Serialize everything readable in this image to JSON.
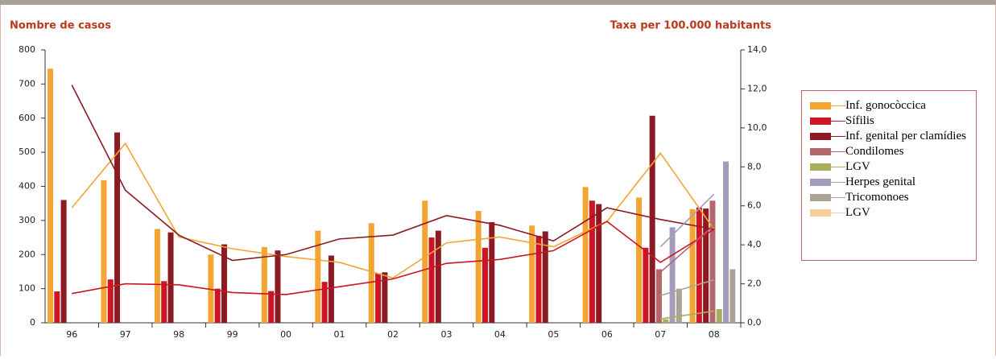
{
  "chart_data": {
    "type": "bar",
    "y_title": "Nombre de casos",
    "y2_title": "Taxa per 100.000 habitants",
    "categories": [
      "96",
      "97",
      "98",
      "99",
      "00",
      "01",
      "02",
      "03",
      "04",
      "05",
      "06",
      "07",
      "08"
    ],
    "ylim": [
      0,
      800
    ],
    "yticks": [
      0,
      100,
      200,
      300,
      400,
      500,
      600,
      700,
      800
    ],
    "y2lim": [
      0,
      14
    ],
    "y2ticks": [
      {
        "value": 0,
        "label": "0,0"
      },
      {
        "value": 2,
        "label": "2,0"
      },
      {
        "value": 4,
        "label": "4,0"
      },
      {
        "value": 6,
        "label": "6,0"
      },
      {
        "value": 8,
        "label": "8,0"
      },
      {
        "value": 10,
        "label": "10,0"
      },
      {
        "value": 12,
        "label": "12,0"
      },
      {
        "value": 14,
        "label": "14,0"
      }
    ],
    "series": [
      {
        "name": "Inf. gonocòccica",
        "color": "#f2a533",
        "values": [
          745,
          418,
          275,
          200,
          222,
          270,
          292,
          358,
          328,
          285,
          398,
          367,
          333
        ],
        "rates": [
          5.9,
          9.2,
          4.4,
          3.8,
          3.4,
          3.1,
          2.3,
          4.1,
          4.4,
          3.9,
          5.2,
          8.7,
          4.8
        ]
      },
      {
        "name": "Sífilis",
        "color": "#cc1424",
        "values": [
          92,
          127,
          122,
          100,
          93,
          120,
          145,
          250,
          220,
          255,
          358,
          220,
          338
        ],
        "rates": [
          1.5,
          2.0,
          1.95,
          1.55,
          1.45,
          1.85,
          2.25,
          3.05,
          3.25,
          3.7,
          5.2,
          3.1,
          4.8
        ]
      },
      {
        "name": "Inf. genital per clamídies",
        "color": "#8c1a22",
        "values": [
          360,
          558,
          265,
          230,
          212,
          197,
          148,
          270,
          295,
          268,
          348,
          607,
          335
        ],
        "rates": [
          12.2,
          6.8,
          4.5,
          3.2,
          3.5,
          4.3,
          4.5,
          5.5,
          5.0,
          4.2,
          5.9,
          5.3,
          4.8
        ]
      },
      {
        "name": "Condilomes",
        "color": "#b5666a",
        "values": [
          null,
          null,
          null,
          null,
          null,
          null,
          null,
          null,
          null,
          null,
          null,
          157,
          358
        ],
        "rates": [
          null,
          null,
          null,
          null,
          null,
          null,
          null,
          null,
          null,
          null,
          null,
          2.6,
          5.0
        ]
      },
      {
        "name": "LGV",
        "color": "#a9ae5a",
        "values": [
          null,
          null,
          null,
          null,
          null,
          null,
          null,
          null,
          null,
          null,
          null,
          10,
          40
        ],
        "rates": [
          null,
          null,
          null,
          null,
          null,
          null,
          null,
          null,
          null,
          null,
          null,
          0.2,
          0.6
        ]
      },
      {
        "name": "Herpes genital",
        "color": "#a49bbd",
        "values": [
          null,
          null,
          null,
          null,
          null,
          null,
          null,
          null,
          null,
          null,
          null,
          280,
          473
        ],
        "rates": [
          null,
          null,
          null,
          null,
          null,
          null,
          null,
          null,
          null,
          null,
          null,
          3.9,
          6.6
        ]
      },
      {
        "name": "Tricomonoes",
        "color": "#aaa396",
        "values": [
          null,
          null,
          null,
          null,
          null,
          null,
          null,
          null,
          null,
          null,
          null,
          100,
          157
        ],
        "rates": [
          null,
          null,
          null,
          null,
          null,
          null,
          null,
          null,
          null,
          null,
          null,
          1.4,
          2.2
        ]
      },
      {
        "name": "LGV",
        "color": "#f6cf9c",
        "values": [
          null,
          null,
          null,
          null,
          null,
          null,
          null,
          null,
          null,
          null,
          null,
          null,
          null
        ],
        "rates": [
          null,
          null,
          null,
          null,
          null,
          null,
          null,
          null,
          null,
          null,
          null,
          null,
          null
        ]
      }
    ]
  }
}
